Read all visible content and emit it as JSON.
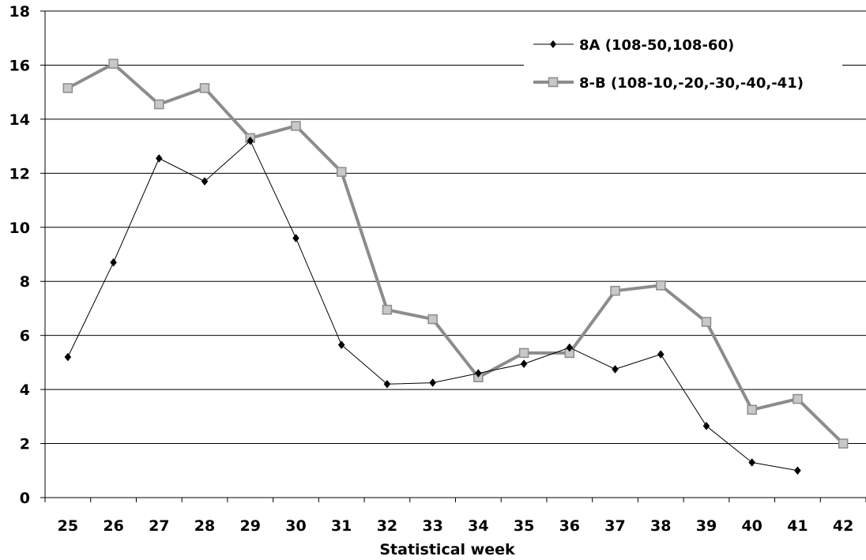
{
  "chart_data": {
    "type": "line",
    "title": "",
    "xlabel": "Statistical week",
    "ylabel": "",
    "x": [
      25,
      26,
      27,
      28,
      29,
      30,
      31,
      32,
      33,
      34,
      35,
      36,
      37,
      38,
      39,
      40,
      41,
      42
    ],
    "ylim": [
      0,
      18
    ],
    "yticks": [
      0,
      2,
      4,
      6,
      8,
      10,
      12,
      14,
      16,
      18
    ],
    "grid": "horizontal",
    "legend_position": "top-right",
    "series": [
      {
        "name": "8A (108-50,108-60)",
        "marker": "diamond",
        "color": "#000000",
        "values": [
          5.2,
          8.7,
          12.55,
          11.7,
          13.2,
          9.6,
          5.65,
          4.2,
          4.25,
          4.6,
          4.95,
          5.55,
          4.75,
          5.3,
          2.65,
          1.3,
          1.0,
          null
        ]
      },
      {
        "name": "8-B (108-10,-20,-30,-40,-41)",
        "marker": "square",
        "color": "#8c8c8c",
        "values": [
          15.15,
          16.05,
          14.55,
          15.15,
          13.3,
          13.75,
          12.05,
          6.95,
          6.6,
          4.45,
          5.35,
          5.35,
          7.65,
          7.85,
          6.5,
          3.25,
          3.65,
          2.0
        ]
      }
    ]
  }
}
